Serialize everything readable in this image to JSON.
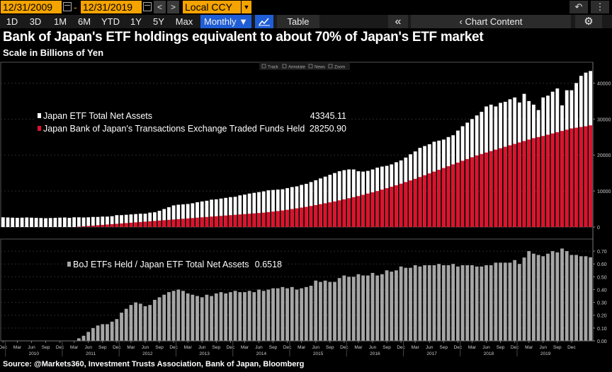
{
  "toolbar": {
    "start_date": "12/31/2009",
    "date_separator": "-",
    "end_date": "12/31/2019",
    "prev_label": "<",
    "next_label": ">",
    "currency": "Local CCY",
    "currency_drop": "▼",
    "undo_label": "↶",
    "menu_label": "⋮",
    "periods": [
      "1D",
      "3D",
      "1M",
      "6M",
      "YTD",
      "1Y",
      "5Y",
      "Max"
    ],
    "frequency": "Monthly ▼",
    "table_label": "Table",
    "collapse_label": "«",
    "chart_content_label": "Chart Content",
    "settings_label": "⚙"
  },
  "header": {
    "title": "Bank of Japan's ETF holdings equivalent to about 70% of Japan's ETF market",
    "subtitle": "Scale in Billions of Yen"
  },
  "chart_tools": [
    "Track",
    "Annotate",
    "News",
    "Zoom"
  ],
  "source": "Source: @Markets360, Investment Trusts Association, Bank of Japan, Bloomberg",
  "colors": {
    "total_assets": "#ffffff",
    "boj_holdings": "#e0112b",
    "ratio": "#a6a6a6",
    "background": "#000000"
  },
  "chart_data": [
    {
      "type": "bar",
      "title": "Bank of Japan's ETF holdings equivalent to about 70% of Japan's ETF market",
      "ylabel": "Scale in Billions of Yen",
      "ylim": [
        0,
        45000
      ],
      "yticks": [
        0,
        10000,
        20000,
        30000,
        40000
      ],
      "ytick_labels": [
        "0",
        "10000",
        "20000",
        "30000",
        "40000"
      ],
      "x_start": "Dec 2009",
      "x_end": "Dec 2019",
      "frequency": "monthly",
      "series": [
        {
          "name": "Japan ETF Total Net Assets",
          "last_value": "43345.11",
          "values": [
            2700,
            2650,
            2600,
            2550,
            2600,
            2650,
            2600,
            2550,
            2500,
            2450,
            2500,
            2550,
            2600,
            2650,
            2550,
            2700,
            2700,
            2650,
            2700,
            2800,
            2800,
            2900,
            2900,
            3000,
            3300,
            3300,
            3400,
            3500,
            3600,
            3700,
            3700,
            4000,
            4100,
            4500,
            5000,
            5500,
            6000,
            6200,
            6300,
            6400,
            6600,
            6900,
            7100,
            7300,
            7600,
            7700,
            7900,
            8100,
            8300,
            8400,
            8800,
            9000,
            9300,
            9500,
            9700,
            9900,
            10200,
            10300,
            10400,
            10500,
            10800,
            11100,
            11300,
            11700,
            12000,
            12500,
            13000,
            13500,
            14000,
            14500,
            15000,
            15500,
            15800,
            16000,
            16000,
            15500,
            15400,
            15600,
            16000,
            16500,
            16800,
            17000,
            17400,
            18000,
            18500,
            19300,
            20200,
            21000,
            22000,
            22500,
            23000,
            23700,
            24000,
            24300,
            25000,
            25500,
            26800,
            28000,
            29000,
            30000,
            31000,
            32000,
            33500,
            34000,
            33500,
            34500,
            34800,
            35500,
            36000,
            34600,
            37000,
            35000,
            34000,
            32500,
            36000,
            36500,
            37600,
            38500,
            33800,
            38000,
            38000,
            40000,
            42000,
            42900,
            43345
          ]
        },
        {
          "name": "Japan Bank of Japan's Transactions Exchange Traded Funds Held",
          "last_value": "28250.90",
          "values": [
            0,
            0,
            0,
            0,
            0,
            0,
            0,
            0,
            0,
            0,
            0,
            0,
            0,
            0,
            0,
            0,
            100,
            200,
            300,
            400,
            500,
            600,
            700,
            800,
            900,
            1000,
            1100,
            1200,
            1300,
            1400,
            1500,
            1600,
            1700,
            1800,
            1900,
            2000,
            2100,
            2200,
            2300,
            2400,
            2500,
            2600,
            2700,
            2800,
            2900,
            3000,
            3100,
            3200,
            3300,
            3400,
            3500,
            3600,
            3700,
            3800,
            3900,
            4000,
            4150,
            4300,
            4450,
            4600,
            4800,
            5000,
            5200,
            5400,
            5600,
            5850,
            6100,
            6350,
            6600,
            6850,
            7100,
            7400,
            7700,
            8000,
            8300,
            8600,
            8950,
            9300,
            9650,
            10000,
            10400,
            10800,
            11200,
            11600,
            12050,
            12500,
            12950,
            13400,
            13900,
            14400,
            14900,
            15400,
            15900,
            16400,
            16900,
            17400,
            17900,
            18400,
            18900,
            19400,
            19900,
            20300,
            20700,
            21100,
            21500,
            21900,
            22300,
            22700,
            23100,
            23500,
            23900,
            24300,
            24700,
            25000,
            25300,
            25650,
            26000,
            26350,
            26700,
            27050,
            27400,
            27600,
            27800,
            28000,
            28251
          ]
        }
      ]
    },
    {
      "type": "bar",
      "ylim": [
        0,
        0.75
      ],
      "yticks": [
        0,
        0.1,
        0.2,
        0.3,
        0.4,
        0.5,
        0.6,
        0.7
      ],
      "ytick_labels": [
        "0.00",
        "0.10",
        "0.20",
        "0.30",
        "0.40",
        "0.50",
        "0.60",
        "0.70"
      ],
      "series": [
        {
          "name": "BoJ ETFs Held / Japan ETF Total Net Assets",
          "last_value": "0.6518",
          "values": [
            0,
            0,
            0,
            0,
            0,
            0,
            0,
            0,
            0,
            0,
            0,
            0,
            0,
            0,
            0,
            0,
            0.02,
            0.04,
            0.07,
            0.1,
            0.12,
            0.13,
            0.13,
            0.15,
            0.17,
            0.22,
            0.25,
            0.28,
            0.3,
            0.29,
            0.27,
            0.28,
            0.32,
            0.34,
            0.36,
            0.38,
            0.39,
            0.4,
            0.39,
            0.37,
            0.36,
            0.35,
            0.34,
            0.36,
            0.35,
            0.37,
            0.38,
            0.37,
            0.38,
            0.39,
            0.38,
            0.38,
            0.39,
            0.38,
            0.4,
            0.39,
            0.4,
            0.41,
            0.41,
            0.42,
            0.41,
            0.42,
            0.4,
            0.41,
            0.42,
            0.43,
            0.47,
            0.46,
            0.47,
            0.46,
            0.46,
            0.49,
            0.51,
            0.5,
            0.5,
            0.52,
            0.51,
            0.51,
            0.53,
            0.51,
            0.52,
            0.55,
            0.54,
            0.55,
            0.58,
            0.57,
            0.57,
            0.59,
            0.58,
            0.59,
            0.59,
            0.59,
            0.6,
            0.59,
            0.59,
            0.6,
            0.58,
            0.59,
            0.59,
            0.59,
            0.58,
            0.58,
            0.59,
            0.59,
            0.61,
            0.61,
            0.61,
            0.61,
            0.63,
            0.6,
            0.65,
            0.7,
            0.68,
            0.67,
            0.66,
            0.68,
            0.7,
            0.69,
            0.72,
            0.7,
            0.67,
            0.67,
            0.66,
            0.66,
            0.6518
          ]
        }
      ]
    }
  ],
  "x_axis": {
    "month_labels": [
      "Dec",
      "Mar",
      "Jun",
      "Sep",
      "Dec",
      "Mar",
      "Jun",
      "Sep",
      "Dec",
      "Mar",
      "Jun",
      "Sep",
      "Dec",
      "Mar",
      "Jun",
      "Sep",
      "Dec",
      "Mar",
      "Jun",
      "Sep",
      "Dec",
      "Mar",
      "Jun",
      "Sep",
      "Dec",
      "Mar",
      "Jun",
      "Sep",
      "Dec",
      "Mar",
      "Jun",
      "Sep",
      "Dec",
      "Mar",
      "Jun",
      "Sep",
      "Dec",
      "Mar",
      "Jun",
      "Sep",
      "Dec"
    ],
    "year_labels": [
      "2010",
      "2011",
      "2012",
      "2013",
      "2014",
      "2015",
      "2016",
      "2017",
      "2018",
      "2019"
    ]
  }
}
